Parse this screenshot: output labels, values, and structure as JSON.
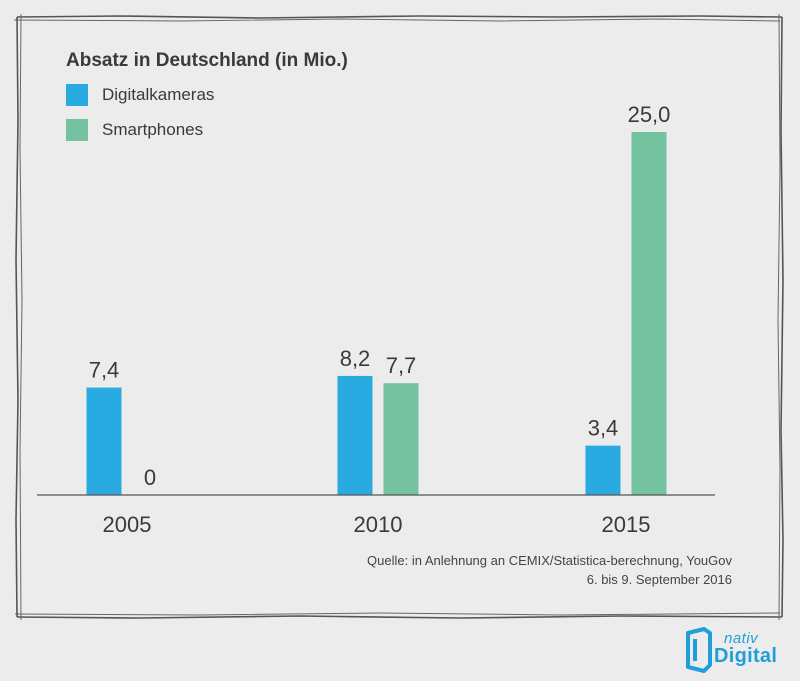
{
  "chart_data": {
    "type": "bar",
    "title": "Absatz in Deutschland (in Mio.)",
    "categories": [
      "2005",
      "2010",
      "2015"
    ],
    "series": [
      {
        "name": "Digitalkameras",
        "color": "#29abe2",
        "values": [
          7.4,
          8.2,
          3.4
        ],
        "labels": [
          "7,4",
          "8,2",
          "3,4"
        ]
      },
      {
        "name": "Smartphones",
        "color": "#74c2a0",
        "values": [
          0,
          7.7,
          25.0
        ],
        "labels": [
          "0",
          "7,7",
          "25,0"
        ]
      }
    ],
    "ylim": [
      0,
      25
    ],
    "grid": false,
    "legend": "top-left"
  },
  "source": {
    "line1": "Quelle: in Anlehnung an CEMIX/Statistica-berechnung, YouGov",
    "line2": "6. bis 9. September 2016"
  },
  "logo": {
    "top": "nativ",
    "bottom": "Digital",
    "icon": "nativ-digital-logo-icon"
  },
  "colors": {
    "background": "#ececec",
    "frame": "#555555",
    "axis": "#555555",
    "text": "#3a3a3a"
  }
}
